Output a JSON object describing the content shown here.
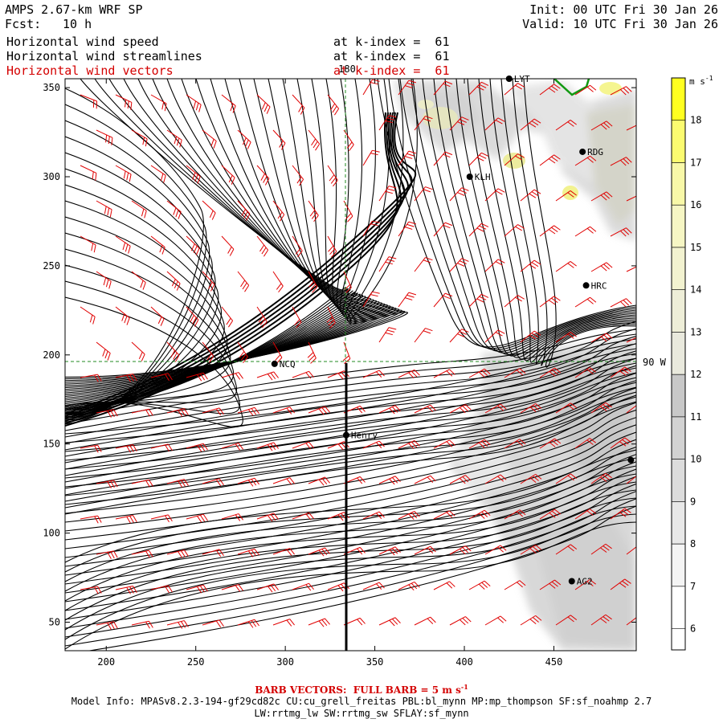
{
  "header": {
    "title_left": "AMPS 2.67-km WRF SP",
    "fcst_label": "Fcst:",
    "fcst_value": "10 h",
    "init": "Init: 00 UTC Fri 30 Jan 26",
    "valid": "Valid: 10 UTC Fri 30 Jan 26",
    "fields": [
      {
        "name": "Horizontal wind speed",
        "level": "at k-index =  61"
      },
      {
        "name": "Horizontal wind streamlines",
        "level": "at k-index =  61"
      },
      {
        "name": "Horizontal wind vectors",
        "level": "at k-index =  61"
      }
    ]
  },
  "axes": {
    "x_ticks": [
      "200",
      "250",
      "300",
      "350",
      "400",
      "450"
    ],
    "y_ticks": [
      "50",
      "100",
      "150",
      "200",
      "250",
      "300",
      "350"
    ],
    "x_range": [
      177,
      496
    ],
    "y_range": [
      34,
      355
    ],
    "meridian_label_180": "180",
    "meridian_label_90w": "90 W"
  },
  "stations": [
    {
      "name": "LYT",
      "x": 425,
      "y": 355
    },
    {
      "name": "RDG",
      "x": 466,
      "y": 314
    },
    {
      "name": "KLH",
      "x": 403,
      "y": 300
    },
    {
      "name": "HRC",
      "x": 468,
      "y": 239
    },
    {
      "name": "NCQ",
      "x": 294,
      "y": 195
    },
    {
      "name": "Henry",
      "x": 334,
      "y": 155
    },
    {
      "name": "AG2",
      "x": 460,
      "y": 73
    },
    {
      "name": "",
      "x": 493,
      "y": 141
    }
  ],
  "colorbar": {
    "unit": "m s",
    "unit_exp": "-1",
    "labels": [
      "6",
      "7",
      "8",
      "9",
      "10",
      "11",
      "12",
      "13",
      "14",
      "15",
      "16",
      "17",
      "18"
    ],
    "colors": [
      "#ffffff",
      "#f4f4f4",
      "#e8e8e8",
      "#dcdcdc",
      "#d2d2d2",
      "#c8c8c8",
      "#e9e9dd",
      "#eeeed8",
      "#f2f2d0",
      "#f6f6c4",
      "#f8f8a8",
      "#fbfb70",
      "#ffff20"
    ]
  },
  "footer": {
    "barb_text": "BARB VECTORS:  FULL BARB = 5 m s",
    "barb_exp": "-1",
    "model_info_1": "Model Info: MPASv8.2.3-194-gf29cd82c CU:cu_grell_freitas PBL:bl_mynn MP:mp_thompson SF:sf_noahmp 2.7",
    "model_info_2": "LW:rrtmg_lw SW:rrtmg_sw SFLAY:sf_mynn"
  },
  "colors": {
    "barb": "#e00000",
    "streamline": "#000000",
    "grid": "#228b22",
    "coast": "#007000"
  }
}
